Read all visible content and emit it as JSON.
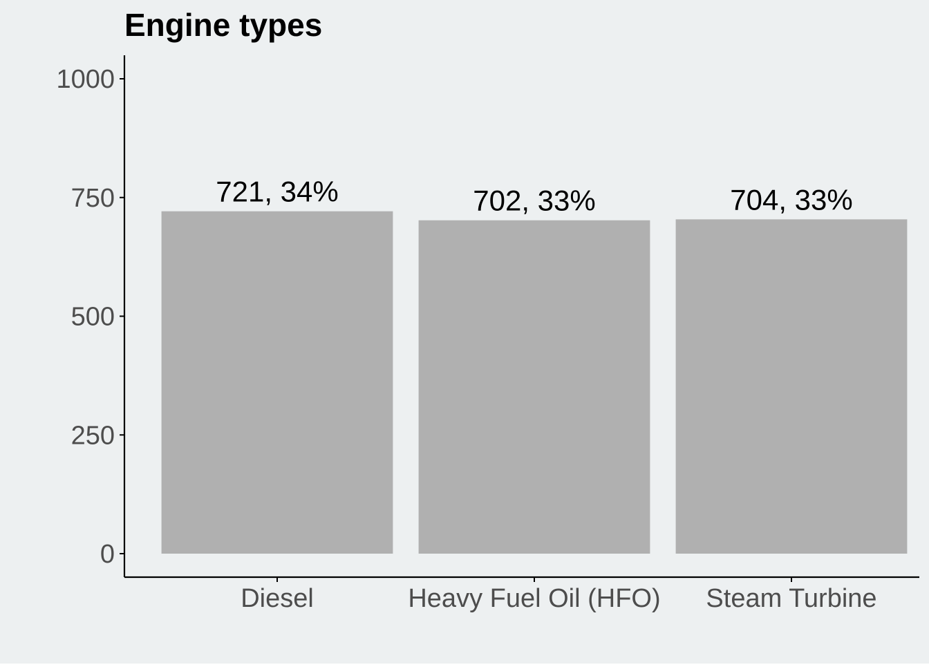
{
  "chart_data": {
    "type": "bar",
    "title": "Engine types",
    "categories": [
      "Diesel",
      "Heavy Fuel Oil (HFO)",
      "Steam Turbine"
    ],
    "values": [
      721,
      702,
      704
    ],
    "data_labels": [
      "721, 34%",
      "702, 33%",
      "704, 33%"
    ],
    "ylim": [
      0,
      1050
    ],
    "yticks": [
      0,
      250,
      500,
      750,
      1000
    ],
    "ytick_labels": [
      "0",
      "250",
      "500",
      "750",
      "1000"
    ],
    "xlabel": "",
    "ylabel": "",
    "grid": false,
    "legend": "none"
  },
  "colors": {
    "background": "#edf0f1",
    "bar": "#b0b0b0",
    "axis": "#000000",
    "tick_text": "#4d4d4d",
    "label_text": "#000000"
  }
}
